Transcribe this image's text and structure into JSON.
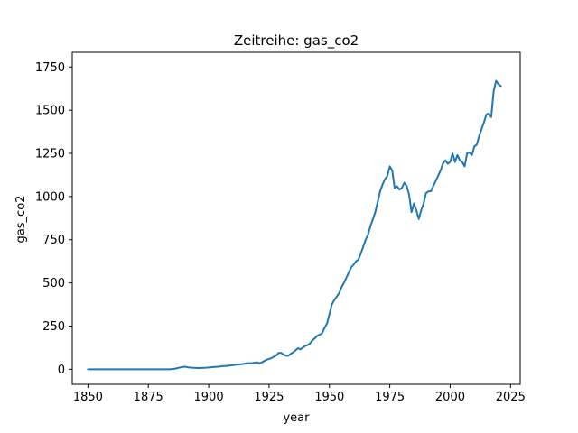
{
  "chart_data": {
    "type": "line",
    "title": "Zeitreihe: gas_co2",
    "xlabel": "year",
    "ylabel": "gas_co2",
    "xlim": [
      1843.5,
      2029
    ],
    "ylim": [
      -87,
      1835
    ],
    "x_ticks": [
      1850,
      1875,
      1900,
      1925,
      1950,
      1975,
      2000,
      2025
    ],
    "y_ticks": [
      0,
      250,
      500,
      750,
      1000,
      1250,
      1500,
      1750
    ],
    "x_tick_labels": [
      "1850",
      "1875",
      "1900",
      "1925",
      "1950",
      "1975",
      "2000",
      "2025"
    ],
    "y_tick_labels": [
      "0",
      "250",
      "500",
      "750",
      "1000",
      "1250",
      "1500",
      "1750"
    ],
    "grid": false,
    "line_color": "#1f77b4",
    "series": [
      {
        "x": [
          1850,
          1860,
          1870,
          1880,
          1884,
          1886,
          1888,
          1890,
          1892,
          1894,
          1896,
          1898,
          1900,
          1902,
          1904,
          1906,
          1908,
          1910,
          1912,
          1914,
          1916,
          1918,
          1920,
          1921,
          1922,
          1924,
          1926,
          1928,
          1929,
          1930,
          1931,
          1932,
          1933,
          1934,
          1935,
          1936,
          1937,
          1938,
          1939,
          1940,
          1941,
          1942,
          1943,
          1944,
          1945,
          1946,
          1947,
          1948,
          1949,
          1950,
          1951,
          1952,
          1953,
          1954,
          1955,
          1956,
          1957,
          1958,
          1959,
          1960,
          1961,
          1962,
          1963,
          1964,
          1965,
          1966,
          1967,
          1968,
          1969,
          1970,
          1971,
          1972,
          1973,
          1974,
          1975,
          1976,
          1977,
          1978,
          1979,
          1980,
          1981,
          1982,
          1983,
          1984,
          1985,
          1986,
          1987,
          1988,
          1989,
          1990,
          1991,
          1992,
          1993,
          1994,
          1995,
          1996,
          1997,
          1998,
          1999,
          2000,
          2001,
          2002,
          2003,
          2004,
          2005,
          2006,
          2007,
          2008,
          2009,
          2010,
          2011,
          2012,
          2013,
          2014,
          2015,
          2016,
          2017,
          2018,
          2019,
          2020,
          2021
        ],
        "y": [
          0,
          0,
          0,
          0,
          0,
          3,
          10,
          15,
          10,
          8,
          7,
          8,
          10,
          13,
          15,
          18,
          20,
          24,
          27,
          30,
          35,
          36,
          40,
          35,
          40,
          55,
          65,
          80,
          95,
          95,
          85,
          78,
          78,
          90,
          98,
          110,
          122,
          115,
          125,
          135,
          140,
          150,
          168,
          180,
          195,
          200,
          210,
          240,
          265,
          320,
          375,
          400,
          420,
          440,
          475,
          500,
          530,
          560,
          590,
          605,
          625,
          635,
          670,
          710,
          750,
          780,
          830,
          870,
          910,
          970,
          1030,
          1070,
          1100,
          1120,
          1175,
          1150,
          1050,
          1060,
          1040,
          1050,
          1080,
          1060,
          1010,
          910,
          960,
          920,
          870,
          920,
          960,
          1020,
          1030,
          1030,
          1060,
          1090,
          1120,
          1150,
          1190,
          1210,
          1190,
          1200,
          1250,
          1200,
          1240,
          1210,
          1200,
          1175,
          1250,
          1255,
          1240,
          1290,
          1300,
          1350,
          1390,
          1430,
          1475,
          1480,
          1460,
          1610,
          1670,
          1650,
          1640
        ]
      }
    ]
  }
}
